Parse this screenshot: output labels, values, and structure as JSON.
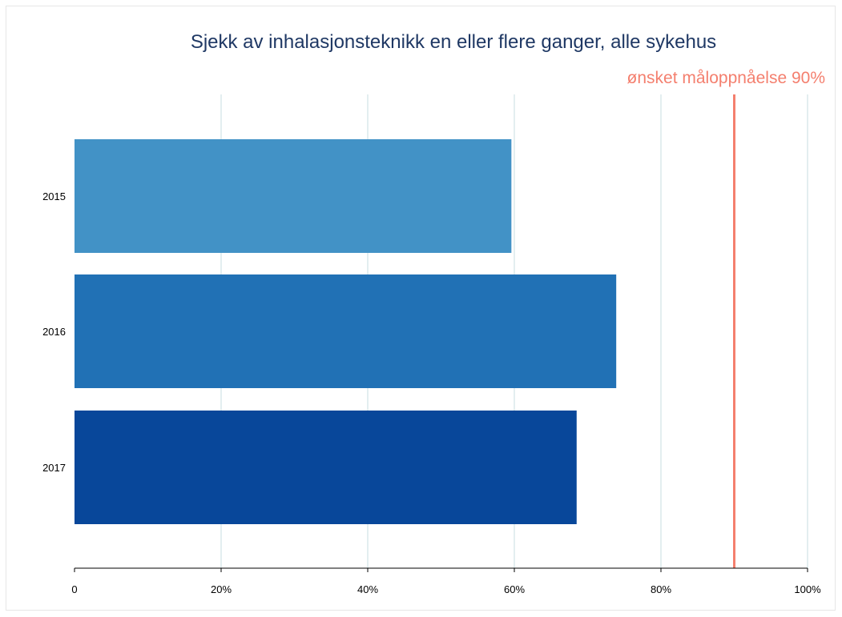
{
  "chart_data": {
    "type": "bar",
    "orientation": "horizontal",
    "title": "Sjekk av inhalasjonsteknikk en eller flere ganger, alle sykehus",
    "categories": [
      "2015",
      "2016",
      "2017"
    ],
    "values": [
      59.6,
      73.9,
      68.5
    ],
    "xlim": [
      0,
      100
    ],
    "xticks": [
      "0",
      "20%",
      "40%",
      "60%",
      "80%",
      "100%"
    ],
    "xtick_values": [
      0,
      20,
      40,
      60,
      80,
      100
    ],
    "grid": true,
    "target": {
      "value": 90,
      "label": "ønsket måloppnåelse 90%"
    },
    "bar_colors": [
      "#4292c6",
      "#2171b5",
      "#08479a"
    ],
    "grid_color": "#e3eef0",
    "target_color": "#f47f6e",
    "title_color": "#1f3864"
  }
}
